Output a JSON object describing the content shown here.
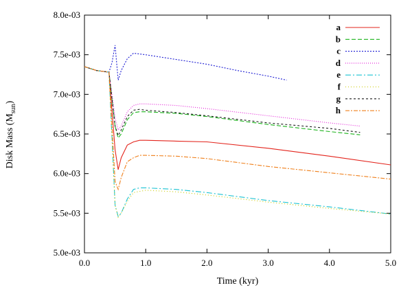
{
  "chart_data": {
    "type": "line",
    "title": "",
    "xlabel": "Time (kyr)",
    "ylabel_main": "Disk Mass (M",
    "ylabel_sub": "sun",
    "ylabel_close": ")",
    "xlim": [
      0.0,
      5.0
    ],
    "ylim": [
      0.005,
      0.008
    ],
    "xticks": [
      0.0,
      1.0,
      2.0,
      3.0,
      4.0,
      5.0
    ],
    "xtick_labels": [
      "0.0",
      "1.0",
      "2.0",
      "3.0",
      "4.0",
      "5.0"
    ],
    "yticks": [
      0.005,
      0.0055,
      0.006,
      0.0065,
      0.007,
      0.0075,
      0.008
    ],
    "ytick_labels": [
      "5.0e-03",
      "5.5e-03",
      "6.0e-03",
      "6.5e-03",
      "7.0e-03",
      "7.5e-03",
      "8.0e-03"
    ],
    "grid": false,
    "legend_position": "top-right",
    "series": [
      {
        "name": "a",
        "color": "#e3231b",
        "dash": "",
        "x": [
          0.0,
          0.2,
          0.4,
          0.5,
          0.55,
          0.6,
          0.7,
          0.8,
          0.9,
          1.0,
          1.5,
          2.0,
          3.0,
          4.0,
          5.0
        ],
        "y": [
          0.00735,
          0.0073,
          0.00728,
          0.0063,
          0.00605,
          0.0062,
          0.00636,
          0.0064,
          0.00642,
          0.00642,
          0.00641,
          0.0064,
          0.00632,
          0.00622,
          0.00611
        ]
      },
      {
        "name": "b",
        "color": "#19b219",
        "dash": "6,3",
        "x": [
          0.0,
          0.2,
          0.4,
          0.5,
          0.55,
          0.6,
          0.7,
          0.8,
          0.9,
          1.0,
          1.5,
          2.0,
          3.0,
          4.0,
          4.5
        ],
        "y": [
          0.00735,
          0.0073,
          0.00728,
          0.0066,
          0.00645,
          0.0065,
          0.00668,
          0.00677,
          0.00678,
          0.00678,
          0.00676,
          0.00672,
          0.00662,
          0.00653,
          0.00649
        ]
      },
      {
        "name": "c",
        "color": "#1a1ad2",
        "dash": "2,2",
        "x": [
          0.0,
          0.2,
          0.4,
          0.45,
          0.5,
          0.55,
          0.6,
          0.7,
          0.8,
          1.0,
          1.5,
          2.0,
          2.5,
          3.0,
          3.3
        ],
        "y": [
          0.00735,
          0.0073,
          0.00728,
          0.0074,
          0.00762,
          0.00718,
          0.0073,
          0.00745,
          0.00752,
          0.0075,
          0.00744,
          0.00738,
          0.0073,
          0.00723,
          0.00718
        ]
      },
      {
        "name": "d",
        "color": "#e21ad6",
        "dash": "1,2",
        "x": [
          0.0,
          0.2,
          0.4,
          0.5,
          0.55,
          0.6,
          0.7,
          0.8,
          0.9,
          1.0,
          1.5,
          2.0,
          3.0,
          4.0,
          4.5
        ],
        "y": [
          0.00735,
          0.0073,
          0.00728,
          0.0067,
          0.00655,
          0.0066,
          0.00678,
          0.00686,
          0.00688,
          0.00688,
          0.00686,
          0.00682,
          0.00673,
          0.00664,
          0.0066
        ]
      },
      {
        "name": "e",
        "color": "#1ac2d2",
        "dash": "8,3,2,3",
        "x": [
          0.0,
          0.2,
          0.4,
          0.5,
          0.55,
          0.6,
          0.7,
          0.8,
          0.9,
          1.0,
          1.5,
          2.0,
          3.0,
          4.0,
          5.0
        ],
        "y": [
          0.00735,
          0.0073,
          0.00728,
          0.0056,
          0.00546,
          0.0055,
          0.00568,
          0.0058,
          0.00582,
          0.00582,
          0.0058,
          0.00576,
          0.00566,
          0.00558,
          0.00549
        ]
      },
      {
        "name": "f",
        "color": "#c9c900",
        "dash": "1,3",
        "x": [
          0.0,
          0.2,
          0.4,
          0.5,
          0.55,
          0.6,
          0.7,
          0.8,
          1.0,
          1.5,
          2.0,
          3.0,
          4.0,
          5.0
        ],
        "y": [
          0.00735,
          0.0073,
          0.00728,
          0.0056,
          0.00545,
          0.0055,
          0.00565,
          0.00576,
          0.00579,
          0.00577,
          0.00573,
          0.00564,
          0.00556,
          0.00549
        ]
      },
      {
        "name": "g",
        "color": "#1a1a1a",
        "dash": "3,3",
        "x": [
          0.0,
          0.2,
          0.4,
          0.5,
          0.55,
          0.6,
          0.7,
          0.8,
          0.9,
          1.0,
          1.5,
          2.0,
          3.0,
          4.0,
          4.5
        ],
        "y": [
          0.00735,
          0.0073,
          0.00728,
          0.0066,
          0.00648,
          0.00655,
          0.00672,
          0.0068,
          0.00681,
          0.0068,
          0.00677,
          0.00673,
          0.00664,
          0.00657,
          0.00652
        ]
      },
      {
        "name": "h",
        "color": "#ef7f1a",
        "dash": "6,2,2,2",
        "x": [
          0.0,
          0.2,
          0.4,
          0.5,
          0.55,
          0.6,
          0.7,
          0.8,
          0.9,
          1.0,
          1.5,
          2.0,
          3.0,
          4.0,
          5.0
        ],
        "y": [
          0.00735,
          0.0073,
          0.00728,
          0.0059,
          0.0058,
          0.00595,
          0.00615,
          0.0062,
          0.00623,
          0.00623,
          0.00622,
          0.00619,
          0.00609,
          0.00601,
          0.00593
        ]
      }
    ]
  }
}
